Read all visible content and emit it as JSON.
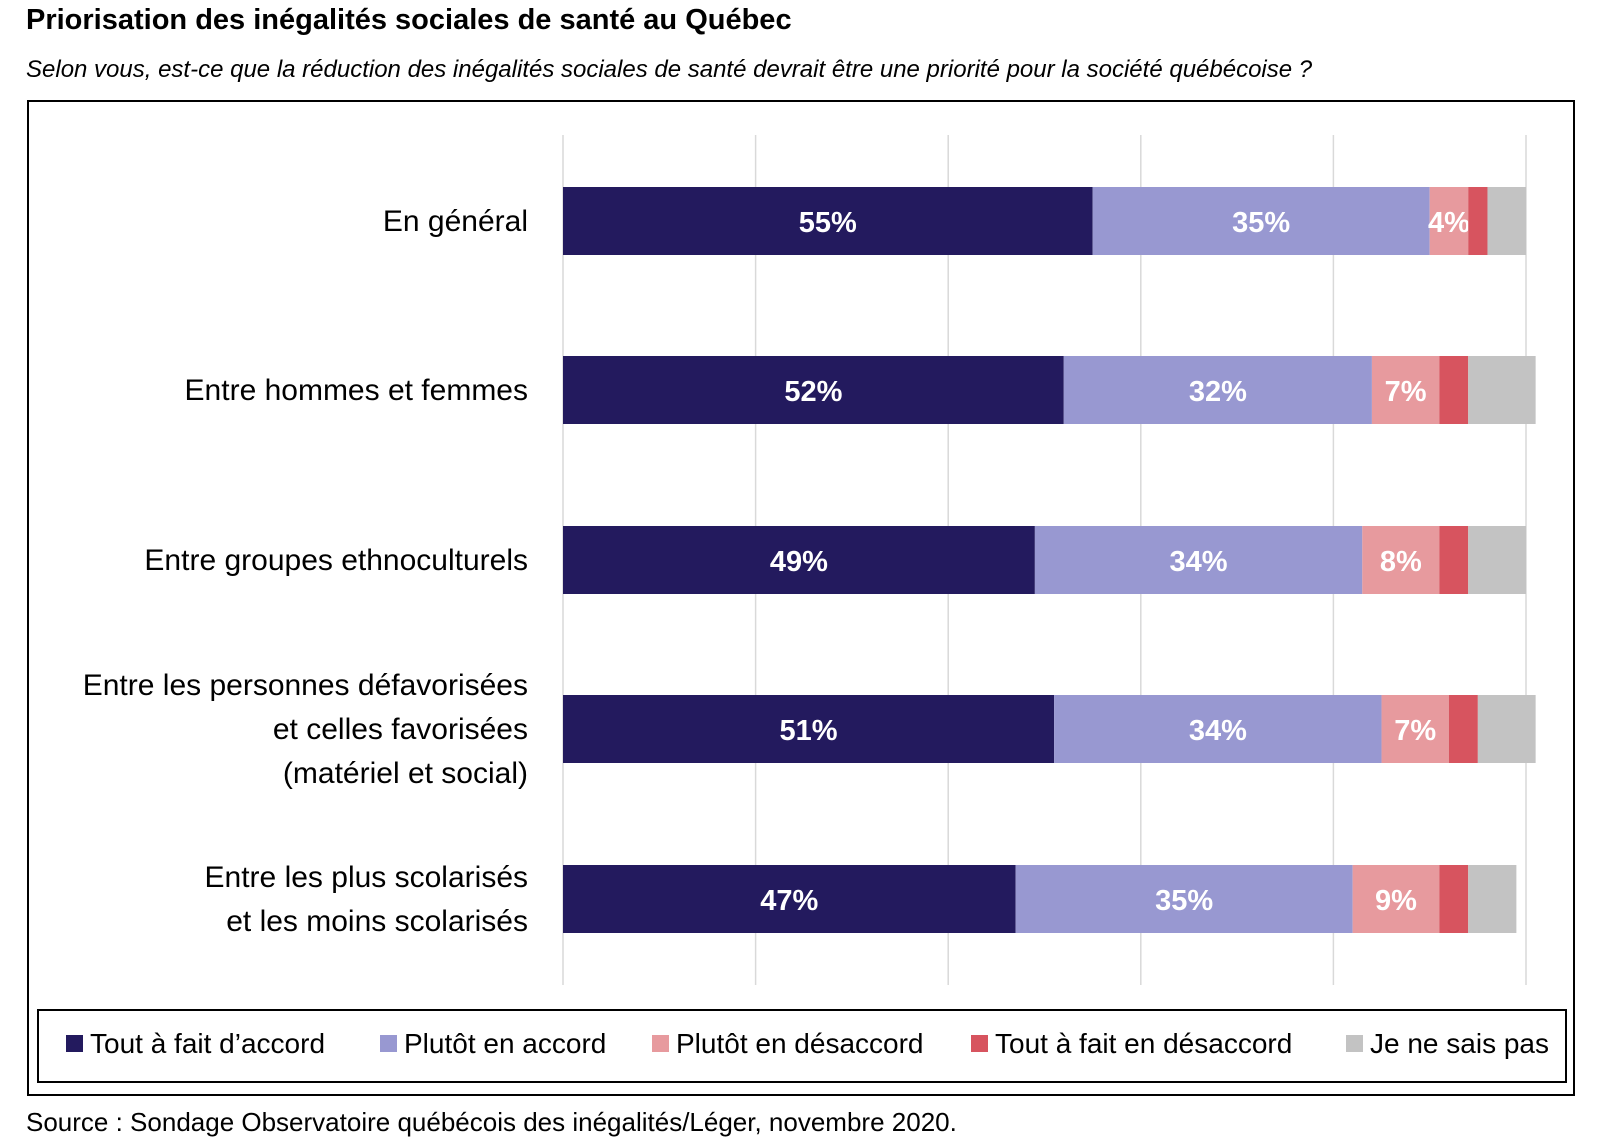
{
  "title": "Priorisation des inégalités sociales de santé au Québec",
  "subtitle": "Selon vous, est-ce que la réduction des inégalités sociales de santé devrait être une priorité pour la société québécoise ?",
  "source": "Source : Sondage Observatoire québécois des inégalités/Léger, novembre 2020.",
  "chart_data": {
    "type": "bar",
    "orientation": "horizontal",
    "stacked": true,
    "xlim": [
      0,
      100
    ],
    "grid": true,
    "legend_position": "bottom",
    "categories": [
      [
        "En général"
      ],
      [
        "Entre hommes et femmes"
      ],
      [
        "Entre groupes ethnoculturels"
      ],
      [
        "Entre les personnes défavorisées",
        "et celles favorisées",
        "(matériel et social)"
      ],
      [
        "Entre les plus scolarisés",
        "et les moins scolarisés"
      ]
    ],
    "series": [
      {
        "name": "Tout à fait d’accord",
        "color": "#231a5e",
        "values": [
          55,
          52,
          49,
          51,
          47
        ],
        "labels": [
          "55%",
          "52%",
          "49%",
          "51%",
          "47%"
        ]
      },
      {
        "name": "Plutôt en accord",
        "color": "#9898d1",
        "values": [
          35,
          32,
          34,
          34,
          35
        ],
        "labels": [
          "35%",
          "32%",
          "34%",
          "34%",
          "35%"
        ]
      },
      {
        "name": "Plutôt en désaccord",
        "color": "#e79a9e",
        "values": [
          4,
          7,
          8,
          7,
          9
        ],
        "labels": [
          "4%",
          "7%",
          "8%",
          "7%",
          "9%"
        ]
      },
      {
        "name": "Tout à fait en désaccord",
        "color": "#d7545f",
        "values": [
          2,
          3,
          3,
          3,
          3
        ],
        "labels": [
          "",
          "",
          "",
          "",
          ""
        ]
      },
      {
        "name": "Je ne sais pas",
        "color": "#c3c3c3",
        "values": [
          4,
          7,
          6,
          6,
          5
        ],
        "labels": [
          "",
          "",
          "",
          "",
          ""
        ]
      }
    ]
  }
}
